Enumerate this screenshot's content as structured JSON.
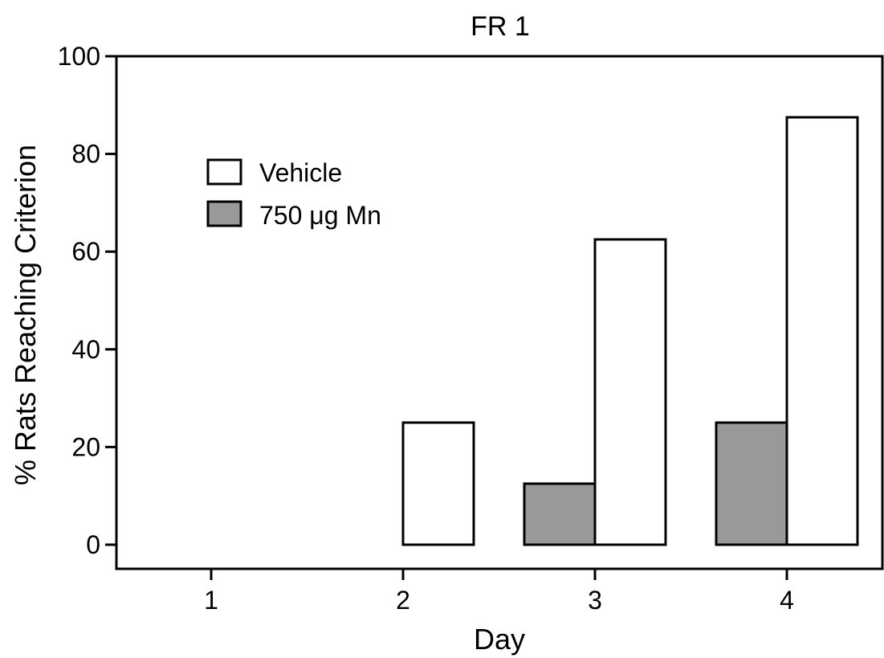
{
  "chart_data": {
    "type": "bar",
    "title": "FR 1",
    "xlabel": "Day",
    "ylabel": "% Rats Reaching Criterion",
    "categories": [
      "1",
      "2",
      "3",
      "4"
    ],
    "ylim": [
      -5,
      100
    ],
    "yticks": [
      0,
      20,
      40,
      60,
      80,
      100
    ],
    "grid": false,
    "legend_position": "top-left",
    "series": [
      {
        "name": "750 μg Mn",
        "color": "#999999",
        "values": [
          0,
          0,
          12.5,
          25
        ]
      },
      {
        "name": "Vehicle",
        "color": "#ffffff",
        "values": [
          0,
          25,
          62.5,
          87.5
        ]
      }
    ],
    "legend": [
      {
        "label": "Vehicle",
        "color": "#ffffff"
      },
      {
        "label": "750 μg Mn",
        "color": "#999999"
      }
    ]
  }
}
